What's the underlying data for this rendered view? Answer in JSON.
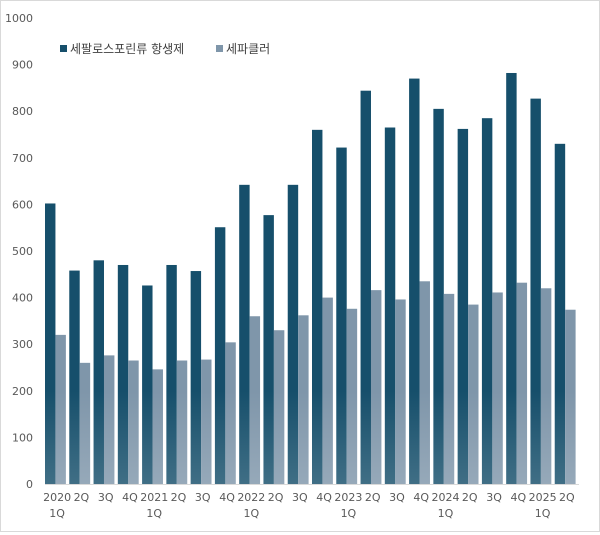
{
  "chart_data": {
    "type": "bar",
    "ylim": [
      0,
      1000
    ],
    "yticks": [
      0,
      100,
      200,
      300,
      400,
      500,
      600,
      700,
      800,
      900,
      1000
    ],
    "grid": false,
    "legend_position": "top-left",
    "categories": [
      "2020\n1Q",
      "2Q",
      "3Q",
      "4Q",
      "2021\n1Q",
      "2Q",
      "3Q",
      "4Q",
      "2022\n1Q",
      "2Q",
      "3Q",
      "4Q",
      "2023\n1Q",
      "2Q",
      "3Q",
      "4Q",
      "2024\n1Q",
      "2Q",
      "3Q",
      "4Q",
      "2025\n1Q",
      "2Q"
    ],
    "series": [
      {
        "name": "세팔로스포린류 항생제",
        "color": "#164f6b",
        "values": [
          602,
          458,
          480,
          470,
          426,
          470,
          457,
          551,
          642,
          577,
          642,
          760,
          722,
          844,
          765,
          870,
          805,
          762,
          785,
          882,
          827,
          730
        ]
      },
      {
        "name": "세파클러",
        "color": "#7f96aa",
        "values": [
          320,
          260,
          276,
          265,
          246,
          265,
          267,
          304,
          360,
          330,
          362,
          400,
          376,
          416,
          396,
          435,
          408,
          385,
          411,
          432,
          420,
          374
        ]
      }
    ]
  }
}
